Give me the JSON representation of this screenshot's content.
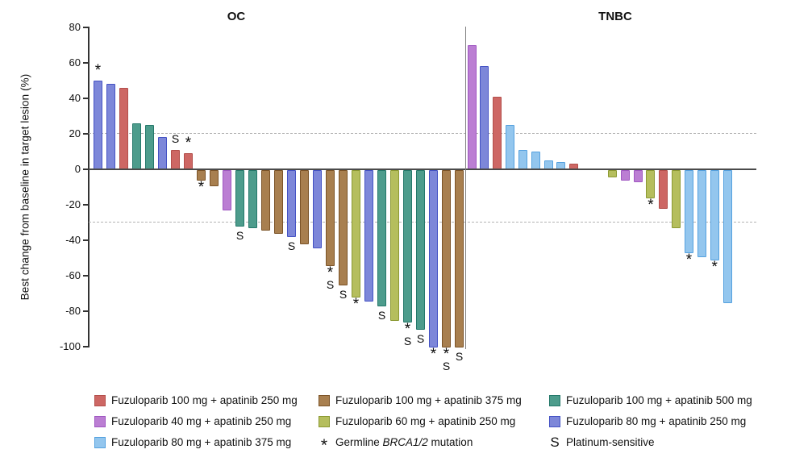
{
  "chart_data": {
    "type": "bar",
    "subtype": "waterfall",
    "title": "",
    "ylabel": "Best change from baseline in target lesion (%)",
    "xlabel": "",
    "ylim": [
      -100,
      80
    ],
    "yticks": [
      80,
      60,
      40,
      20,
      0,
      -20,
      -40,
      -60,
      -80,
      -100
    ],
    "reference_lines": [
      20,
      -30
    ],
    "grid": "off",
    "legend_position": "bottom",
    "annotation_key": {
      "*": "Germline BRCA1/2 mutation",
      "S": "Platinum-sensitive"
    },
    "colors": {
      "red": {
        "fill": "#CD6764",
        "border": "#B34F4B",
        "label": "Fuzuloparib 100 mg + apatinib 250 mg"
      },
      "purple": {
        "fill": "#BB7ED3",
        "border": "#9F57C1",
        "label": "Fuzuloparib 40 mg + apatinib 250 mg"
      },
      "skyblue": {
        "fill": "#93C6EE",
        "border": "#55A1DF",
        "label": "Fuzuloparib 80 mg + apatinib 375 mg"
      },
      "brown": {
        "fill": "#A87F4F",
        "border": "#7B5327",
        "label": "Fuzuloparib 100 mg + apatinib 375 mg"
      },
      "olive": {
        "fill": "#B5BE5D",
        "border": "#8B9932",
        "label": "Fuzuloparib 60 mg + apatinib 250 mg"
      },
      "teal": {
        "fill": "#4D9C8C",
        "border": "#24786A",
        "label": "Fuzuloparib 100 mg + apatinib 500 mg"
      },
      "blue": {
        "fill": "#7D87D9",
        "border": "#4452C4",
        "label": "Fuzuloparib 80 mg + apatinib 250 mg"
      }
    },
    "groups": [
      {
        "label": "OC",
        "bars": [
          {
            "v": 50,
            "c": "blue",
            "m": "*"
          },
          {
            "v": 48,
            "c": "blue",
            "m": ""
          },
          {
            "v": 46,
            "c": "red",
            "m": ""
          },
          {
            "v": 26,
            "c": "teal",
            "m": ""
          },
          {
            "v": 25,
            "c": "teal",
            "m": ""
          },
          {
            "v": 18,
            "c": "blue",
            "m": ""
          },
          {
            "v": 11,
            "c": "red",
            "m": "S"
          },
          {
            "v": 9,
            "c": "red",
            "m": "*"
          },
          {
            "v": -6,
            "c": "brown",
            "m": "*"
          },
          {
            "v": -9,
            "c": "brown",
            "m": ""
          },
          {
            "v": -23,
            "c": "purple",
            "m": ""
          },
          {
            "v": -32,
            "c": "teal",
            "m": "S"
          },
          {
            "v": -33,
            "c": "teal",
            "m": ""
          },
          {
            "v": -34,
            "c": "brown",
            "m": ""
          },
          {
            "v": -36,
            "c": "brown",
            "m": ""
          },
          {
            "v": -38,
            "c": "blue",
            "m": "S"
          },
          {
            "v": -42,
            "c": "brown",
            "m": ""
          },
          {
            "v": -44,
            "c": "blue",
            "m": ""
          },
          {
            "v": -54,
            "c": "brown",
            "m": "*S"
          },
          {
            "v": -65,
            "c": "brown",
            "m": "S"
          },
          {
            "v": -72,
            "c": "olive",
            "m": "*"
          },
          {
            "v": -74,
            "c": "blue",
            "m": ""
          },
          {
            "v": -77,
            "c": "teal",
            "m": "S"
          },
          {
            "v": -85,
            "c": "olive",
            "m": ""
          },
          {
            "v": -86,
            "c": "teal",
            "m": "*S"
          },
          {
            "v": -90,
            "c": "teal",
            "m": "S"
          },
          {
            "v": -100,
            "c": "blue",
            "m": "*"
          },
          {
            "v": -100,
            "c": "brown",
            "m": "*S"
          },
          {
            "v": -100,
            "c": "brown",
            "m": "S"
          }
        ]
      },
      {
        "label": "TNBC",
        "bars": [
          {
            "v": 70,
            "c": "purple",
            "m": ""
          },
          {
            "v": 58,
            "c": "blue",
            "m": ""
          },
          {
            "v": 41,
            "c": "red",
            "m": ""
          },
          {
            "v": 25,
            "c": "skyblue",
            "m": ""
          },
          {
            "v": 11,
            "c": "skyblue",
            "m": ""
          },
          {
            "v": 10,
            "c": "skyblue",
            "m": ""
          },
          {
            "v": 5,
            "c": "skyblue",
            "m": ""
          },
          {
            "v": 4,
            "c": "skyblue",
            "m": ""
          },
          {
            "v": 3,
            "c": "red",
            "m": ""
          },
          {
            "v": 0,
            "c": "none",
            "m": ""
          },
          {
            "v": 0,
            "c": "none",
            "m": ""
          },
          {
            "v": -4,
            "c": "olive",
            "m": ""
          },
          {
            "v": -6,
            "c": "purple",
            "m": ""
          },
          {
            "v": -7,
            "c": "purple",
            "m": ""
          },
          {
            "v": -16,
            "c": "olive",
            "m": "*"
          },
          {
            "v": -22,
            "c": "red",
            "m": ""
          },
          {
            "v": -33,
            "c": "olive",
            "m": ""
          },
          {
            "v": -47,
            "c": "skyblue",
            "m": "*"
          },
          {
            "v": -49,
            "c": "skyblue",
            "m": ""
          },
          {
            "v": -51,
            "c": "skyblue",
            "m": "*"
          },
          {
            "v": -75,
            "c": "skyblue",
            "m": ""
          }
        ]
      }
    ],
    "legend_columns": [
      [
        "red",
        "purple",
        "skyblue"
      ],
      [
        "brown",
        "olive",
        "marker:brca"
      ],
      [
        "teal",
        "blue",
        "marker:platinum"
      ]
    ],
    "markers": {
      "brca": {
        "symbol": "*",
        "label_parts": [
          [
            "Germline ",
            false
          ],
          [
            "BRCA1/2",
            true
          ],
          [
            " mutation",
            false
          ]
        ]
      },
      "platinum": {
        "symbol": "S",
        "label_parts": [
          [
            "Platinum-sensitive",
            false
          ]
        ]
      }
    }
  }
}
